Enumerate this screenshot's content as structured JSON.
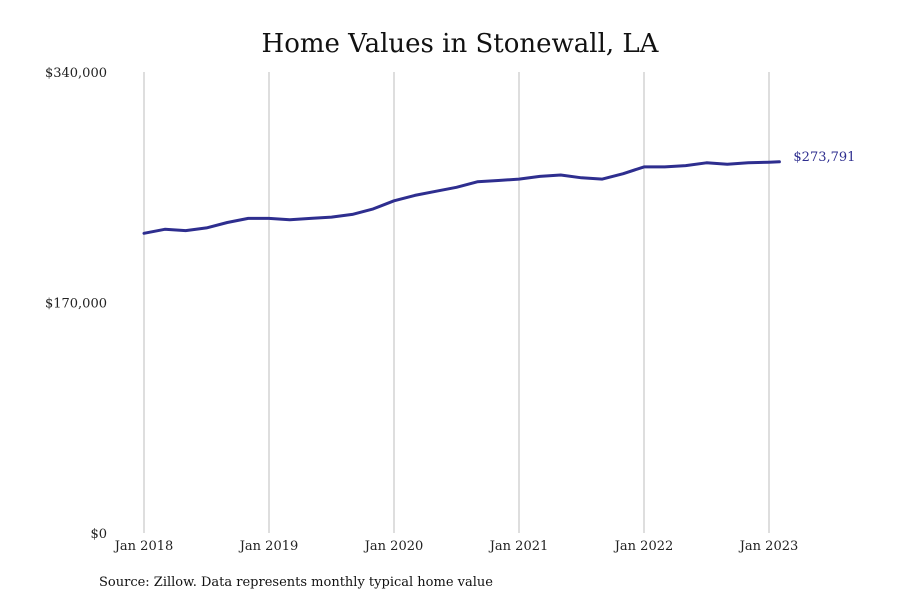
{
  "chart_data": {
    "type": "line",
    "title": "Home Values in Stonewall, LA",
    "xlabel": "",
    "ylabel": "",
    "ylim": [
      0,
      340000
    ],
    "y_ticks": [
      "$0",
      "$170,000",
      "$340,000"
    ],
    "y_tick_values": [
      0,
      170000,
      340000
    ],
    "x_ticks": [
      "Jan 2018",
      "Jan 2019",
      "Jan 2020",
      "Jan 2021",
      "Jan 2022",
      "Jan 2023"
    ],
    "x_tick_values": [
      "2018-01",
      "2019-01",
      "2020-01",
      "2021-01",
      "2022-01",
      "2023-01"
    ],
    "grid": "vertical lines at each January",
    "legend": "none",
    "end_label": "$273,791",
    "series": [
      {
        "color": "#2e2e8f",
        "x": [
          "2018-01",
          "2018-03",
          "2018-05",
          "2018-07",
          "2018-09",
          "2018-11",
          "2019-01",
          "2019-03",
          "2019-05",
          "2019-07",
          "2019-09",
          "2019-11",
          "2020-01",
          "2020-03",
          "2020-05",
          "2020-07",
          "2020-09",
          "2020-11",
          "2021-01",
          "2021-03",
          "2021-05",
          "2021-07",
          "2021-09",
          "2021-11",
          "2022-01",
          "2022-03",
          "2022-05",
          "2022-07",
          "2022-09",
          "2022-11",
          "2023-01",
          "2023-02"
        ],
        "values": [
          221000,
          224000,
          223000,
          225000,
          229000,
          232000,
          232000,
          231000,
          232000,
          233000,
          235000,
          239000,
          245000,
          249000,
          252000,
          255000,
          259000,
          260000,
          261000,
          263000,
          264000,
          262000,
          261000,
          265000,
          270000,
          270000,
          271000,
          273000,
          272000,
          273000,
          273500,
          273791
        ]
      }
    ]
  },
  "source_text": "Source: Zillow. Data represents monthly typical home value"
}
